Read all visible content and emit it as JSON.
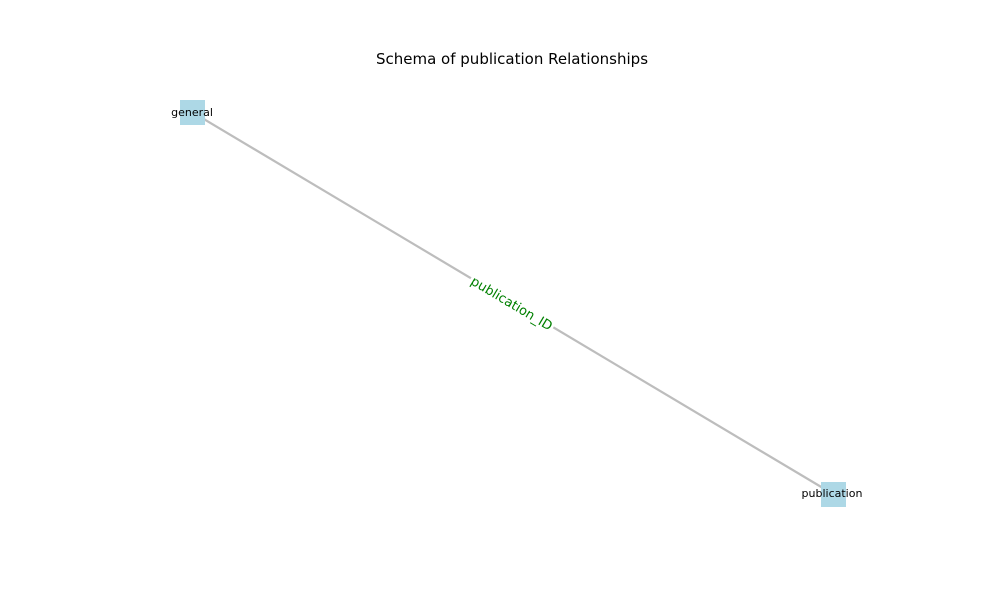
{
  "diagram": {
    "title": "Schema of publication Relationships",
    "colors": {
      "node_fill": "#add8e6",
      "edge_stroke": "#bdbdbd",
      "edge_label": "#008000"
    },
    "nodes": [
      {
        "id": "general",
        "label": "general"
      },
      {
        "id": "publication",
        "label": "publication"
      }
    ],
    "edges": [
      {
        "from": "general",
        "to": "publication",
        "label": "publication_ID"
      }
    ]
  }
}
